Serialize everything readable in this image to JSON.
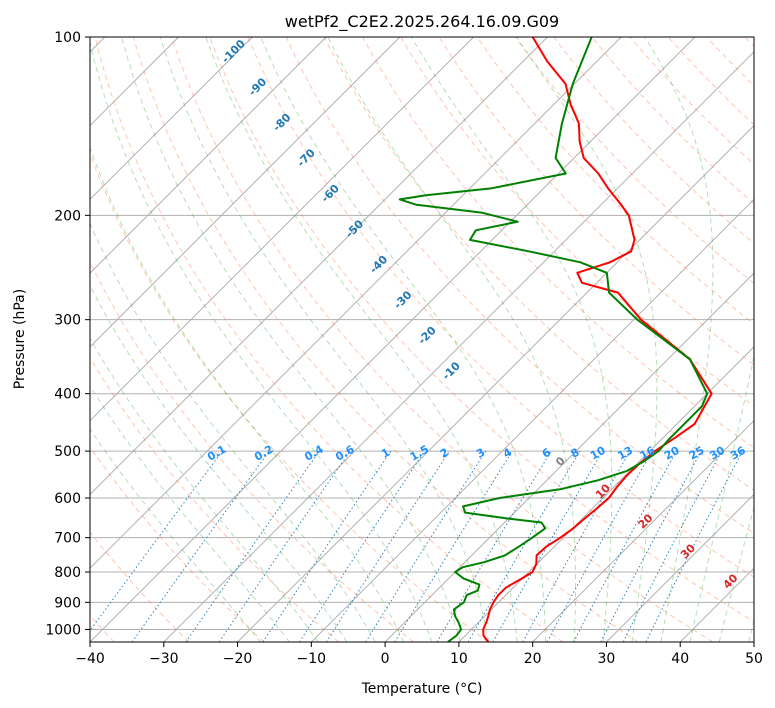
{
  "chart_data": {
    "type": "line",
    "title": "wetPf2_C2E2.2025.264.16.09.G09",
    "xlabel": "Temperature (°C)",
    "ylabel": "Pressure (hPa)",
    "xlim": [
      -40,
      50
    ],
    "ylim": [
      1050,
      100
    ],
    "y_scale": "log",
    "grid": true,
    "x_ticks": [
      -40,
      -30,
      -20,
      -10,
      0,
      10,
      20,
      30,
      40,
      50
    ],
    "y_ticks": [
      100,
      200,
      300,
      400,
      500,
      600,
      700,
      800,
      900,
      1000
    ],
    "series": [
      {
        "color": "#ff0000",
        "points": [
          [
            1050,
            14
          ],
          [
            1025,
            12.5
          ],
          [
            1000,
            11.6
          ],
          [
            975,
            11.1
          ],
          [
            950,
            10.5
          ],
          [
            925,
            9.8
          ],
          [
            900,
            9.3
          ],
          [
            875,
            9.0
          ],
          [
            850,
            9.0
          ],
          [
            825,
            9.8
          ],
          [
            800,
            10.5
          ],
          [
            775,
            9.9
          ],
          [
            750,
            8.8
          ],
          [
            725,
            8.9
          ],
          [
            700,
            9.6
          ],
          [
            675,
            10.1
          ],
          [
            650,
            10.3
          ],
          [
            625,
            10.6
          ],
          [
            600,
            10.8
          ],
          [
            575,
            10.4
          ],
          [
            550,
            10.2
          ],
          [
            525,
            10.3
          ],
          [
            500,
            10.7
          ],
          [
            475,
            11.6
          ],
          [
            450,
            12.4
          ],
          [
            400,
            10.6
          ],
          [
            350,
            3.0
          ],
          [
            300,
            -9.0
          ],
          [
            270,
            -15.8
          ],
          [
            260,
            -22.0
          ],
          [
            250,
            -24.0
          ],
          [
            240,
            -21.0
          ],
          [
            230,
            -19.6
          ],
          [
            220,
            -20.7
          ],
          [
            200,
            -24.8
          ],
          [
            190,
            -27.9
          ],
          [
            180,
            -31.3
          ],
          [
            170,
            -34.6
          ],
          [
            160,
            -38.7
          ],
          [
            150,
            -41.5
          ],
          [
            140,
            -44.0
          ],
          [
            130,
            -47.7
          ],
          [
            120,
            -51.2
          ],
          [
            110,
            -56.7
          ],
          [
            100,
            -62.0
          ]
        ]
      },
      {
        "color": "#008000",
        "points": [
          [
            1050,
            8.5
          ],
          [
            1025,
            8.8
          ],
          [
            1000,
            8.6
          ],
          [
            975,
            7.4
          ],
          [
            950,
            6.0
          ],
          [
            925,
            4.9
          ],
          [
            900,
            5.3
          ],
          [
            875,
            4.7
          ],
          [
            860,
            5.6
          ],
          [
            840,
            5.0
          ],
          [
            820,
            2.0
          ],
          [
            800,
            0.0
          ],
          [
            785,
            0.4
          ],
          [
            770,
            2.6
          ],
          [
            750,
            4.5
          ],
          [
            725,
            5.2
          ],
          [
            700,
            5.8
          ],
          [
            675,
            6.3
          ],
          [
            660,
            5.0
          ],
          [
            650,
            0.0
          ],
          [
            635,
            -6.7
          ],
          [
            620,
            -7.8
          ],
          [
            600,
            -4.0
          ],
          [
            580,
            3.0
          ],
          [
            560,
            6.9
          ],
          [
            540,
            9.6
          ],
          [
            520,
            10.6
          ],
          [
            500,
            11.2
          ],
          [
            480,
            11.0
          ],
          [
            440,
            11.0
          ],
          [
            420,
            11.0
          ],
          [
            400,
            10.0
          ],
          [
            350,
            3.0
          ],
          [
            300,
            -9.5
          ],
          [
            270,
            -17.0
          ],
          [
            250,
            -20.0
          ],
          [
            240,
            -25.0
          ],
          [
            230,
            -33.5
          ],
          [
            220,
            -43.0
          ],
          [
            212,
            -43.5
          ],
          [
            205,
            -39.0
          ],
          [
            198,
            -45.0
          ],
          [
            192,
            -55.0
          ],
          [
            188,
            -58.0
          ],
          [
            185,
            -55.0
          ],
          [
            180,
            -47.0
          ],
          [
            170,
            -39.0
          ],
          [
            160,
            -42.5
          ],
          [
            140,
            -46.3
          ],
          [
            120,
            -50.2
          ],
          [
            100,
            -54.0
          ]
        ]
      }
    ],
    "dry_adiabats_label_temps": [
      -100,
      -90,
      -80,
      -70,
      -60,
      -50,
      -40,
      -30,
      -20,
      -10
    ],
    "moist_adiabat_labels": [
      {
        "text": "0",
        "temp": 0,
        "color": "#808080"
      },
      {
        "text": "10",
        "temp": 10,
        "color": "#d62728"
      },
      {
        "text": "20",
        "temp": 20,
        "color": "#d62728"
      },
      {
        "text": "30",
        "temp": 30,
        "color": "#d62728"
      },
      {
        "text": "40",
        "temp": 40,
        "color": "#d62728"
      }
    ],
    "mixing_ratio_labels": [
      "0.1",
      "0.2",
      "0.4",
      "0.6",
      "1",
      "1.5",
      "2",
      "3",
      "4",
      "6",
      "8",
      "10",
      "13",
      "16",
      "20",
      "25",
      "30",
      "36"
    ],
    "isobar_color": "#b0b0b0",
    "isotherm_color": "#b0b0b0",
    "dry_adiabat_color": "#ff7f50",
    "moist_adiabat_color": "#2ca02c",
    "mixing_ratio_color": "#1f77b4",
    "dry_label_color": "#1f77b4",
    "mixing_label_color": "#1e90ff"
  }
}
